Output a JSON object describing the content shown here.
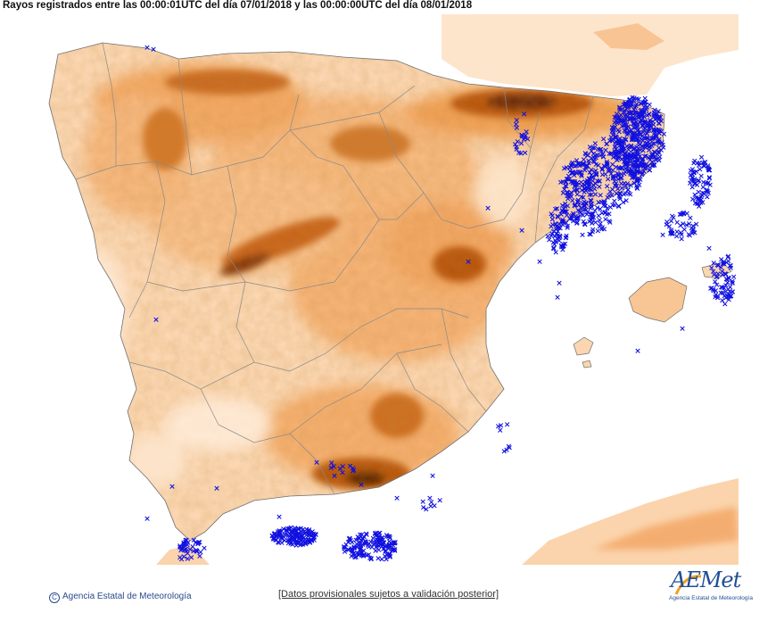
{
  "header": {
    "title": "Rayos registrados entre las 00:00:01UTC del día 07/01/2018 y las 00:00:00UTC del día 08/01/2018"
  },
  "footer": {
    "copyright": "Agencia Estatal de Meteorología",
    "disclaimer": "[Datos provisionales sujetos a validación posterior]"
  },
  "logo": {
    "word": "AEMet",
    "subtitle": "Agencia Estatal de Meteorología"
  },
  "colors": {
    "lightning": "#1010e0",
    "terrain_low": "#fde3c8",
    "terrain_mid": "#f4a862",
    "terrain_high": "#7a3508",
    "sea": "#ffffff",
    "borders": "#8a8a8a"
  },
  "map": {
    "marker_glyph": "×",
    "lightning_clusters": [
      {
        "region": "Catalunya / Girona",
        "density": "very high"
      },
      {
        "region": "Costa de Tarragona y Castellón",
        "density": "high"
      },
      {
        "region": "Menorca y mar Balear",
        "density": "high"
      },
      {
        "region": "Mar de Alborán",
        "density": "high"
      },
      {
        "region": "Estrecho de Gibraltar",
        "density": "medium"
      },
      {
        "region": "Sierra Nevada",
        "density": "low"
      }
    ]
  }
}
